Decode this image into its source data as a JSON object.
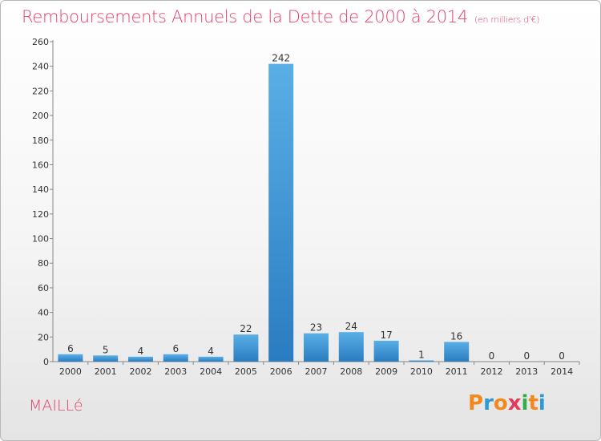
{
  "chart_data": {
    "type": "bar",
    "title": "Remboursements Annuels de la Dette de 2000 à 2014",
    "unit": "(en milliers d'€)",
    "categories": [
      "2000",
      "2001",
      "2002",
      "2003",
      "2004",
      "2005",
      "2006",
      "2007",
      "2008",
      "2009",
      "2010",
      "2011",
      "2012",
      "2013",
      "2014"
    ],
    "values": [
      6,
      5,
      4,
      6,
      4,
      22,
      242,
      23,
      24,
      17,
      1,
      16,
      0,
      0,
      0
    ],
    "ylim": [
      0,
      260
    ],
    "ytick_step": 20,
    "xlabel": "",
    "ylabel": "",
    "grid": false,
    "bar_color_light": "#5aafe6",
    "bar_color_dark": "#2a7cc0",
    "title_color": "#e6406a"
  },
  "footer": {
    "town": "MAILLé",
    "logo_letters": [
      "P",
      "r",
      "o",
      "x",
      "i",
      "t",
      "i"
    ],
    "logo_colors": [
      "#f08a1e",
      "#2b9ad6",
      "#f08a1e",
      "#e23c5a",
      "#2fae4a",
      "#f08a1e",
      "#2b9ad6"
    ]
  }
}
